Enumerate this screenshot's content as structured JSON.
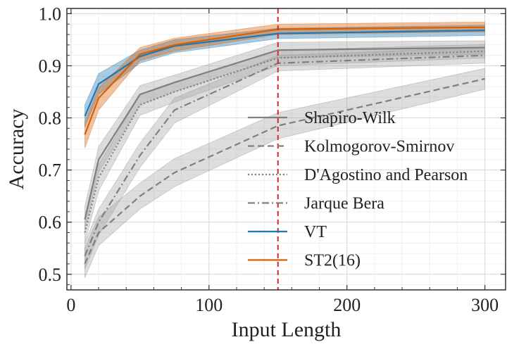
{
  "chart_data": {
    "type": "line",
    "title": "",
    "xlabel": "Input Length",
    "ylabel": "Accuracy",
    "xlim": [
      -3,
      315
    ],
    "ylim": [
      0.47,
      1.01
    ],
    "xticks": [
      0,
      100,
      200,
      300
    ],
    "xtick_labels": [
      "0",
      "100",
      "200",
      "300"
    ],
    "yticks": [
      0.5,
      0.6,
      0.7,
      0.8,
      0.9,
      1.0
    ],
    "ytick_labels": [
      "0.5",
      "0.6",
      "0.7",
      "0.8",
      "0.9",
      "1.0"
    ],
    "grid": true,
    "legend_position": "right",
    "vline": {
      "x": 150,
      "color": "#d62728",
      "style": "dashed"
    },
    "series": [
      {
        "name": "Shapiro-Wilk",
        "color": "#7f7f7f",
        "dash": "solid",
        "x": [
          10,
          20,
          50,
          75,
          150,
          300
        ],
        "y": [
          0.605,
          0.72,
          0.845,
          0.868,
          0.93,
          0.935
        ],
        "lower": [
          0.585,
          0.695,
          0.825,
          0.85,
          0.915,
          0.922
        ],
        "upper": [
          0.63,
          0.745,
          0.862,
          0.882,
          0.945,
          0.948
        ]
      },
      {
        "name": "Kolmogorov-Smirnov",
        "color": "#7f7f7f",
        "dash": "dashed",
        "x": [
          10,
          20,
          50,
          75,
          150,
          300
        ],
        "y": [
          0.52,
          0.58,
          0.65,
          0.695,
          0.785,
          0.875
        ],
        "lower": [
          0.493,
          0.555,
          0.625,
          0.668,
          0.76,
          0.855
        ],
        "upper": [
          0.55,
          0.61,
          0.675,
          0.722,
          0.81,
          0.895
        ]
      },
      {
        "name": "D'Agostino and Pearson",
        "color": "#7f7f7f",
        "dash": "dotted",
        "x": [
          10,
          20,
          50,
          75,
          150,
          300
        ],
        "y": [
          0.58,
          0.685,
          0.825,
          0.85,
          0.915,
          0.928
        ],
        "lower": [
          0.56,
          0.66,
          0.805,
          0.83,
          0.9,
          0.915
        ],
        "upper": [
          0.6,
          0.71,
          0.845,
          0.868,
          0.93,
          0.941
        ]
      },
      {
        "name": "Jarque Bera",
        "color": "#7f7f7f",
        "dash": "dashdot",
        "x": [
          10,
          20,
          50,
          75,
          150,
          300
        ],
        "y": [
          0.535,
          0.6,
          0.728,
          0.815,
          0.905,
          0.92
        ],
        "lower": [
          0.51,
          0.575,
          0.705,
          0.79,
          0.89,
          0.905
        ],
        "upper": [
          0.56,
          0.625,
          0.752,
          0.838,
          0.92,
          0.935
        ]
      },
      {
        "name": "VT",
        "color": "#1f77b4",
        "dash": "solid",
        "x": [
          10,
          20,
          50,
          75,
          150,
          300
        ],
        "y": [
          0.803,
          0.865,
          0.918,
          0.938,
          0.962,
          0.968
        ],
        "lower": [
          0.782,
          0.845,
          0.905,
          0.925,
          0.952,
          0.958
        ],
        "upper": [
          0.825,
          0.885,
          0.93,
          0.95,
          0.972,
          0.978
        ]
      },
      {
        "name": "ST2(16)",
        "color": "#d95f02",
        "dash": "solid",
        "x": [
          10,
          20,
          50,
          75,
          150,
          300
        ],
        "y": [
          0.768,
          0.838,
          0.922,
          0.94,
          0.97,
          0.974
        ],
        "lower": [
          0.742,
          0.815,
          0.91,
          0.928,
          0.96,
          0.965
        ],
        "upper": [
          0.792,
          0.858,
          0.935,
          0.953,
          0.98,
          0.984
        ]
      }
    ]
  }
}
